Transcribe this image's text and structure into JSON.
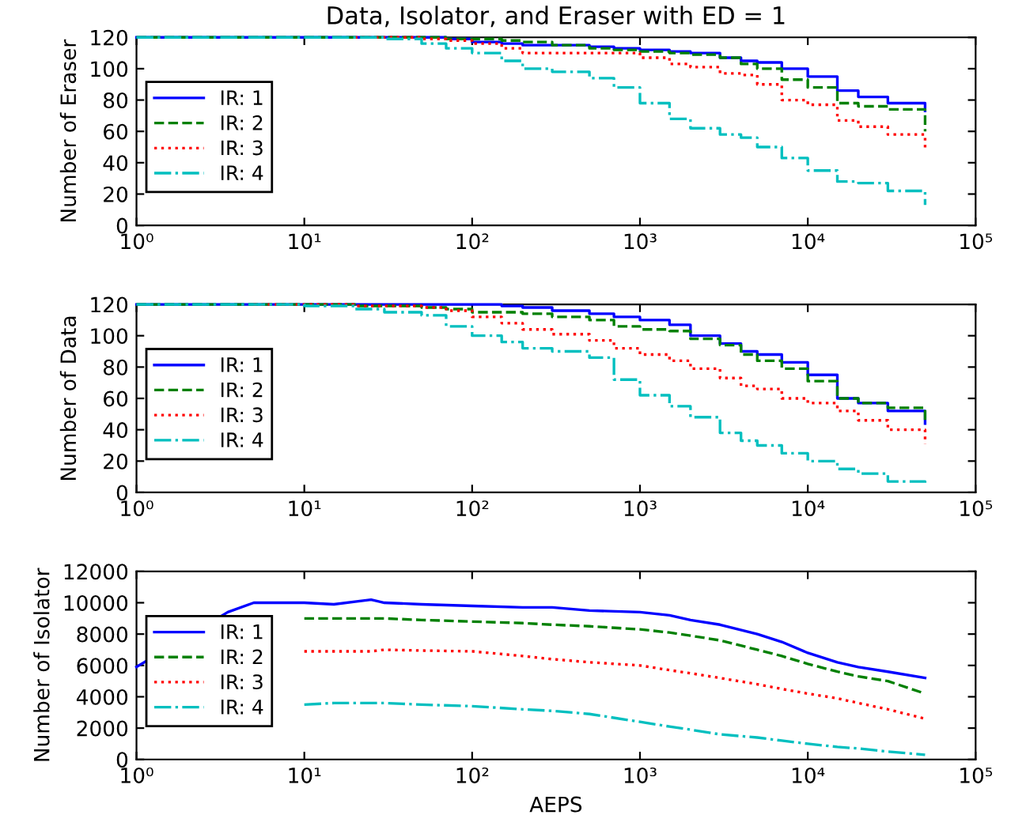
{
  "chart_data": [
    {
      "type": "step",
      "title": "Data, Isolator, and Eraser with ED = 1",
      "ylabel": "Number of Eraser",
      "log": "x",
      "legend": "center left",
      "xlim": [
        1,
        100000
      ],
      "ylim": [
        0,
        120
      ],
      "xticks": [
        {
          "value": 1,
          "label": "10⁰"
        },
        {
          "value": 10,
          "label": "10¹"
        },
        {
          "value": 100,
          "label": "10²"
        },
        {
          "value": 1000,
          "label": "10³"
        },
        {
          "value": 10000,
          "label": "10⁴"
        },
        {
          "value": 100000,
          "label": "10⁵"
        }
      ],
      "yticks": [
        0,
        20,
        40,
        60,
        80,
        100,
        120
      ],
      "x": [
        1,
        2,
        5,
        10,
        20,
        30,
        50,
        70,
        100,
        150,
        200,
        300,
        500,
        700,
        1000,
        1500,
        2000,
        3000,
        4000,
        5000,
        7000,
        10000,
        15000,
        20000,
        30000,
        50000
      ],
      "series": [
        {
          "name": "IR: 1",
          "color": "#0000ff",
          "line_style": "solid",
          "values": [
            120,
            120,
            120,
            120,
            120,
            120,
            120,
            119,
            117,
            116,
            115,
            115,
            114,
            113,
            112,
            111,
            110,
            107,
            105,
            104,
            100,
            95,
            86,
            82,
            78,
            73
          ]
        },
        {
          "name": "IR: 2",
          "color": "#008000",
          "line_style": "dashed",
          "values": [
            120,
            120,
            120,
            120,
            120,
            120,
            120,
            119,
            119,
            118,
            117,
            115,
            113,
            112,
            111,
            110,
            109,
            107,
            103,
            100,
            93,
            88,
            78,
            76,
            74,
            60
          ]
        },
        {
          "name": "IR: 3",
          "color": "#ff0000",
          "line_style": "dotted",
          "values": [
            null,
            null,
            null,
            null,
            120,
            120,
            119,
            118,
            116,
            113,
            110,
            110,
            110,
            110,
            107,
            103,
            101,
            97,
            96,
            90,
            80,
            77,
            67,
            63,
            58,
            49
          ]
        },
        {
          "name": "IR: 4",
          "color": "#00bfbf",
          "line_style": "dashdot",
          "values": [
            120,
            120,
            120,
            120,
            120,
            119,
            116,
            113,
            110,
            105,
            100,
            98,
            94,
            88,
            78,
            68,
            62,
            58,
            56,
            50,
            43,
            35,
            28,
            27,
            22,
            13
          ]
        }
      ]
    },
    {
      "type": "step",
      "ylabel": "Number of Data",
      "log": "x",
      "legend": "center left",
      "xlim": [
        1,
        100000
      ],
      "ylim": [
        0,
        120
      ],
      "xticks": [
        {
          "value": 1,
          "label": "10⁰"
        },
        {
          "value": 10,
          "label": "10¹"
        },
        {
          "value": 100,
          "label": "10²"
        },
        {
          "value": 1000,
          "label": "10³"
        },
        {
          "value": 10000,
          "label": "10⁴"
        },
        {
          "value": 100000,
          "label": "10⁵"
        }
      ],
      "yticks": [
        0,
        20,
        40,
        60,
        80,
        100,
        120
      ],
      "x": [
        1,
        2,
        5,
        10,
        20,
        30,
        50,
        70,
        100,
        150,
        200,
        300,
        500,
        700,
        1000,
        1500,
        2000,
        3000,
        4000,
        5000,
        7000,
        10000,
        15000,
        20000,
        30000,
        50000
      ],
      "series": [
        {
          "name": "IR: 1",
          "color": "#0000ff",
          "line_style": "solid",
          "values": [
            120,
            120,
            120,
            120,
            120,
            120,
            120,
            120,
            120,
            119,
            118,
            116,
            114,
            112,
            110,
            107,
            100,
            95,
            90,
            88,
            83,
            75,
            60,
            57,
            52,
            44
          ]
        },
        {
          "name": "IR: 2",
          "color": "#008000",
          "line_style": "dashed",
          "values": [
            120,
            120,
            120,
            120,
            119,
            119,
            118,
            117,
            115,
            115,
            114,
            112,
            110,
            106,
            104,
            103,
            98,
            94,
            88,
            84,
            79,
            71,
            60,
            57,
            54,
            46
          ]
        },
        {
          "name": "IR: 3",
          "color": "#ff0000",
          "line_style": "dotted",
          "values": [
            null,
            null,
            120,
            120,
            119,
            119,
            118,
            116,
            112,
            108,
            104,
            101,
            97,
            92,
            88,
            84,
            79,
            73,
            68,
            66,
            60,
            57,
            52,
            46,
            40,
            31
          ]
        },
        {
          "name": "IR: 4",
          "color": "#00bfbf",
          "line_style": "dashdot",
          "values": [
            120,
            120,
            120,
            119,
            117,
            115,
            113,
            106,
            100,
            96,
            92,
            90,
            86,
            72,
            62,
            55,
            48,
            38,
            33,
            30,
            25,
            20,
            15,
            12,
            7,
            5
          ]
        }
      ]
    },
    {
      "type": "line",
      "ylabel": "Number of Isolator",
      "xlabel": "AEPS",
      "log": "x",
      "legend": "center left",
      "xlim": [
        1,
        100000
      ],
      "ylim": [
        0,
        12000
      ],
      "xticks": [
        {
          "value": 1,
          "label": "10⁰"
        },
        {
          "value": 10,
          "label": "10¹"
        },
        {
          "value": 100,
          "label": "10²"
        },
        {
          "value": 1000,
          "label": "10³"
        },
        {
          "value": 10000,
          "label": "10⁴"
        },
        {
          "value": 100000,
          "label": "10⁵"
        }
      ],
      "yticks": [
        0,
        2000,
        4000,
        6000,
        8000,
        10000,
        12000
      ],
      "x": [
        1,
        3.5,
        5,
        10,
        15,
        25,
        30,
        50,
        100,
        200,
        300,
        500,
        1000,
        1500,
        2000,
        3000,
        5000,
        7000,
        10000,
        15000,
        20000,
        30000,
        50000
      ],
      "series": [
        {
          "name": "IR: 1",
          "color": "#0000ff",
          "line_style": "solid",
          "values": [
            5900,
            9400,
            10000,
            10000,
            9900,
            10200,
            10000,
            9900,
            9800,
            9700,
            9700,
            9500,
            9400,
            9200,
            8900,
            8600,
            8000,
            7500,
            6800,
            6200,
            5900,
            5600,
            5200
          ]
        },
        {
          "name": "IR: 2",
          "color": "#008000",
          "line_style": "dashed",
          "values": [
            null,
            null,
            null,
            9000,
            9000,
            9000,
            9000,
            8900,
            8800,
            8700,
            8600,
            8500,
            8300,
            8100,
            7900,
            7600,
            7000,
            6600,
            6100,
            5600,
            5300,
            5000,
            4200
          ]
        },
        {
          "name": "IR: 3",
          "color": "#ff0000",
          "line_style": "dotted",
          "values": [
            null,
            null,
            null,
            6900,
            6900,
            6900,
            7000,
            6950,
            6900,
            6600,
            6400,
            6200,
            6000,
            5700,
            5500,
            5200,
            4800,
            4500,
            4200,
            3900,
            3600,
            3200,
            2600
          ]
        },
        {
          "name": "IR: 4",
          "color": "#00bfbf",
          "line_style": "dashdot",
          "values": [
            null,
            null,
            null,
            3500,
            3600,
            3600,
            3600,
            3500,
            3400,
            3200,
            3100,
            2900,
            2400,
            2100,
            1900,
            1600,
            1400,
            1200,
            1000,
            800,
            700,
            500,
            300
          ]
        }
      ]
    }
  ]
}
